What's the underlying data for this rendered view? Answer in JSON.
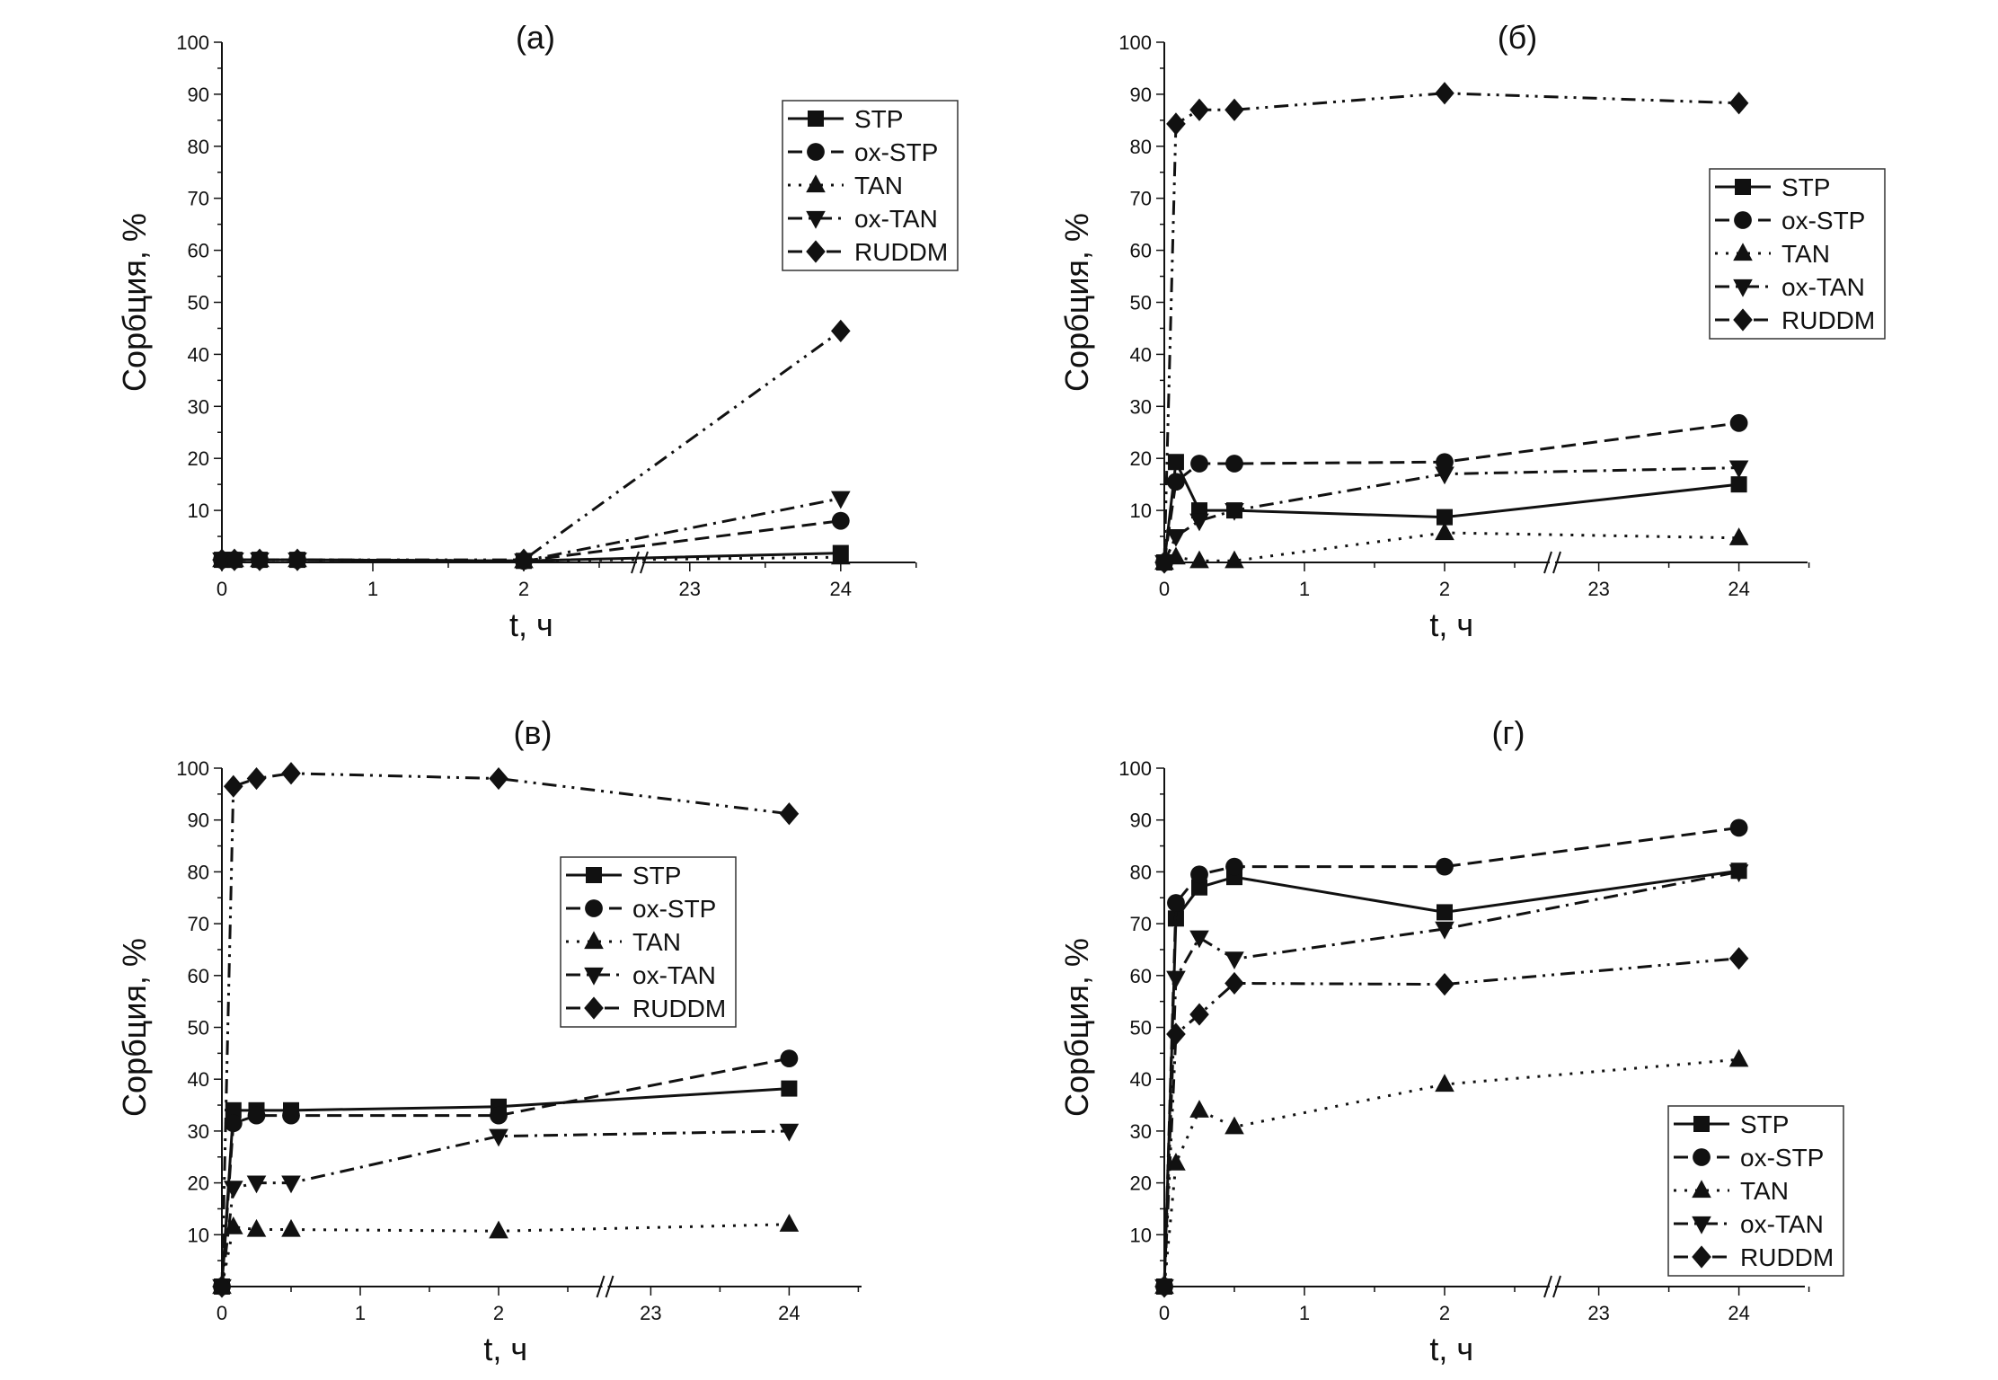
{
  "chart_data": [
    {
      "type": "line",
      "title": "(а)",
      "xlabel": "t, ч",
      "ylabel": "Сорбция, %",
      "ylim": [
        0,
        100
      ],
      "x_ticks": [
        "0",
        "1",
        "2",
        "23",
        "24"
      ],
      "y_ticks": [
        "10",
        "20",
        "30",
        "40",
        "50",
        "60",
        "70",
        "80",
        "90",
        "100"
      ],
      "x_axis_break": [
        2.5,
        23
      ],
      "legend_position": "top-right",
      "x": [
        0,
        0.083,
        0.25,
        0.5,
        2,
        24
      ],
      "series": [
        {
          "name": "STP",
          "marker": "square",
          "line": "solid",
          "values": [
            0.5,
            0.5,
            0.5,
            0.5,
            0.3,
            1.8
          ]
        },
        {
          "name": "ox-STP",
          "marker": "circle",
          "line": "dash",
          "values": [
            0.5,
            0.5,
            0.5,
            0.5,
            0.3,
            8
          ]
        },
        {
          "name": "TAN",
          "marker": "triangle-up",
          "line": "dot",
          "values": [
            0.5,
            0.5,
            0.5,
            0.5,
            0.3,
            1
          ]
        },
        {
          "name": "ox-TAN",
          "marker": "triangle-down",
          "line": "dashdot",
          "values": [
            0.5,
            0.5,
            0.5,
            0.5,
            0.3,
            12.3
          ]
        },
        {
          "name": "RUDDM",
          "marker": "diamond",
          "line": "dashdotdot",
          "values": [
            0.5,
            0.5,
            0.5,
            0.5,
            0.5,
            44.5
          ]
        }
      ]
    },
    {
      "type": "line",
      "title": "(б)",
      "xlabel": "t, ч",
      "ylabel": "Сорбция, %",
      "ylim": [
        0,
        100
      ],
      "x_ticks": [
        "0",
        "1",
        "2",
        "23",
        "24"
      ],
      "y_ticks": [
        "10",
        "20",
        "30",
        "40",
        "50",
        "60",
        "70",
        "80",
        "90",
        "100"
      ],
      "x_axis_break": [
        2.5,
        23
      ],
      "legend_position": "right",
      "x": [
        0,
        0.083,
        0.25,
        0.5,
        2,
        24
      ],
      "series": [
        {
          "name": "STP",
          "marker": "square",
          "line": "solid",
          "values": [
            0,
            19.3,
            10,
            10,
            8.7,
            15
          ]
        },
        {
          "name": "ox-STP",
          "marker": "circle",
          "line": "dash",
          "values": [
            0,
            15.5,
            19,
            19,
            19.3,
            26.8
          ]
        },
        {
          "name": "TAN",
          "marker": "triangle-up",
          "line": "dot",
          "values": [
            0,
            1,
            0.3,
            0.3,
            5.7,
            4.7
          ]
        },
        {
          "name": "ox-TAN",
          "marker": "triangle-down",
          "line": "dashdot",
          "values": [
            0,
            5,
            8,
            10,
            17,
            18.2
          ]
        },
        {
          "name": "RUDDM",
          "marker": "diamond",
          "line": "dashdotdot",
          "values": [
            0,
            84.3,
            87,
            87,
            90.2,
            88.3
          ]
        }
      ]
    },
    {
      "type": "line",
      "title": "(в)",
      "xlabel": "t, ч",
      "ylabel": "Сорбция, %",
      "ylim": [
        0,
        100
      ],
      "x_ticks": [
        "0",
        "1",
        "2",
        "23",
        "24"
      ],
      "y_ticks": [
        "10",
        "20",
        "30",
        "40",
        "50",
        "60",
        "70",
        "80",
        "90",
        "100"
      ],
      "x_axis_break": [
        2.5,
        23
      ],
      "legend_position": "center",
      "x": [
        0,
        0.083,
        0.25,
        0.5,
        2,
        24
      ],
      "series": [
        {
          "name": "STP",
          "marker": "square",
          "line": "solid",
          "values": [
            0,
            34,
            34,
            34,
            34.7,
            38.2
          ]
        },
        {
          "name": "ox-STP",
          "marker": "circle",
          "line": "dash",
          "values": [
            0,
            31.5,
            33,
            33,
            33,
            44
          ]
        },
        {
          "name": "TAN",
          "marker": "triangle-up",
          "line": "dot",
          "values": [
            0,
            11.5,
            11,
            11,
            10.7,
            12
          ]
        },
        {
          "name": "ox-TAN",
          "marker": "triangle-down",
          "line": "dashdot",
          "values": [
            0,
            19,
            20,
            20,
            29,
            30
          ]
        },
        {
          "name": "RUDDM",
          "marker": "diamond",
          "line": "dashdotdot",
          "values": [
            0,
            96.5,
            98,
            99,
            98,
            91.2
          ]
        }
      ]
    },
    {
      "type": "line",
      "title": "(г)",
      "xlabel": "t, ч",
      "ylabel": "Сорбция, %",
      "ylim": [
        0,
        100
      ],
      "x_ticks": [
        "0",
        "1",
        "2",
        "23",
        "24"
      ],
      "y_ticks": [
        "10",
        "20",
        "30",
        "40",
        "50",
        "60",
        "70",
        "80",
        "90",
        "100"
      ],
      "x_axis_break": [
        2.5,
        23
      ],
      "legend_position": "bottom-right",
      "x": [
        0,
        0.083,
        0.25,
        0.5,
        2,
        24
      ],
      "series": [
        {
          "name": "STP",
          "marker": "square",
          "line": "solid",
          "values": [
            0,
            71,
            77,
            79,
            72.2,
            80.2
          ]
        },
        {
          "name": "ox-STP",
          "marker": "circle",
          "line": "dash",
          "values": [
            0,
            74,
            79.5,
            81,
            81,
            88.5
          ]
        },
        {
          "name": "TAN",
          "marker": "triangle-up",
          "line": "dot",
          "values": [
            0,
            23.8,
            34,
            30.8,
            39,
            43.8
          ]
        },
        {
          "name": "ox-TAN",
          "marker": "triangle-down",
          "line": "dashdot",
          "values": [
            0,
            59.5,
            67.3,
            63.2,
            69,
            80
          ]
        },
        {
          "name": "RUDDM",
          "marker": "diamond",
          "line": "dashdotdot",
          "values": [
            0,
            48.7,
            52.5,
            58.5,
            58.3,
            63.3
          ]
        }
      ]
    }
  ]
}
